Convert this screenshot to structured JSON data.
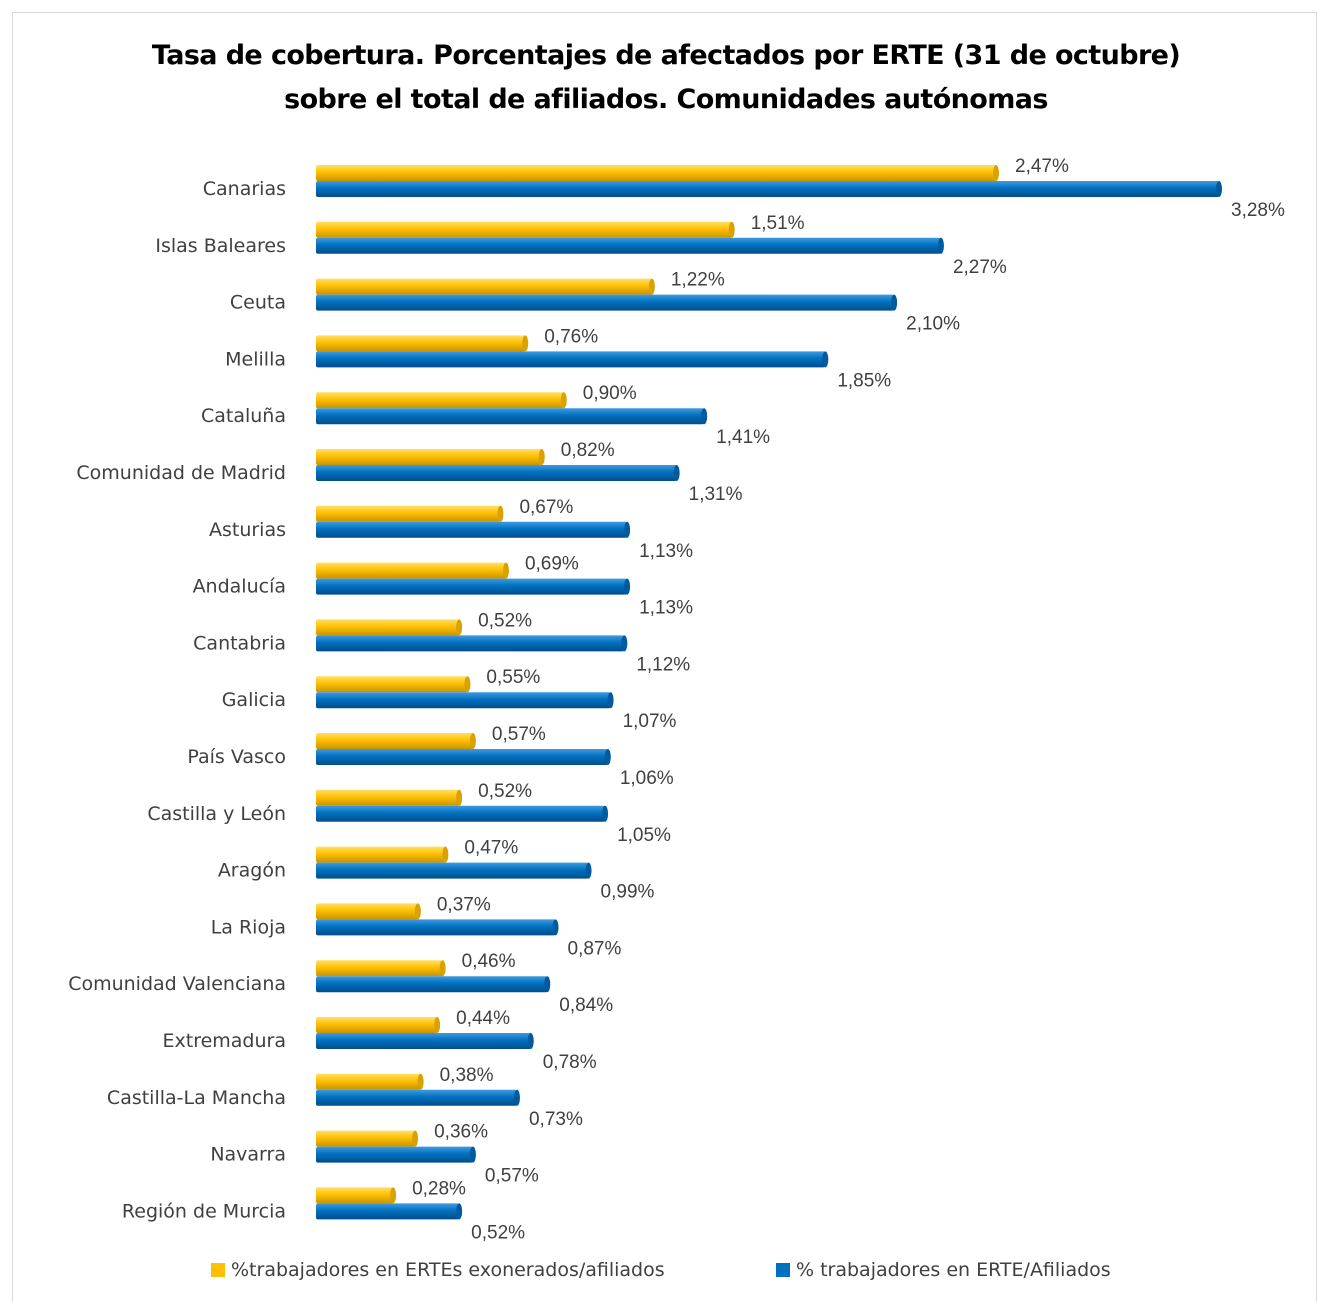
{
  "chart_data": {
    "type": "bar",
    "orientation": "horizontal",
    "title_line1": "Tasa de cobertura. Porcentajes de afectados por ERTE (31 de octubre)",
    "title_line2": "sobre el total de afiliados. Comunidades autónomas",
    "categories": [
      "Canarias",
      "Islas Baleares",
      "Ceuta",
      "Melilla",
      "Cataluña",
      "Comunidad de Madrid",
      "Asturias",
      "Andalucía",
      "Cantabria",
      "Galicia",
      "País Vasco",
      "Castilla y León",
      "Aragón",
      "La Rioja",
      "Comunidad Valenciana",
      "Extremadura",
      "Castilla-La Mancha",
      "Navarra",
      "Región de Murcia"
    ],
    "series": [
      {
        "name": "%trabajadores en ERTEs exonerados/afiliados",
        "color": "#ffc000",
        "values": [
          2.47,
          1.51,
          1.22,
          0.76,
          0.9,
          0.82,
          0.67,
          0.69,
          0.52,
          0.55,
          0.57,
          0.52,
          0.47,
          0.37,
          0.46,
          0.44,
          0.38,
          0.36,
          0.28
        ],
        "labels": [
          "2,47%",
          "1,51%",
          "1,22%",
          "0,76%",
          "0,90%",
          "0,82%",
          "0,67%",
          "0,69%",
          "0,52%",
          "0,55%",
          "0,57%",
          "0,52%",
          "0,47%",
          "0,37%",
          "0,46%",
          "0,44%",
          "0,38%",
          "0,36%",
          "0,28%"
        ]
      },
      {
        "name": "% trabajadores en ERTE/Afiliados",
        "color": "#0070c0",
        "values": [
          3.28,
          2.27,
          2.1,
          1.85,
          1.41,
          1.31,
          1.13,
          1.13,
          1.12,
          1.07,
          1.06,
          1.05,
          0.99,
          0.87,
          0.84,
          0.78,
          0.73,
          0.57,
          0.52
        ],
        "labels": [
          "3,28%",
          "2,27%",
          "2,10%",
          "1,85%",
          "1,41%",
          "1,31%",
          "1,13%",
          "1,13%",
          "1,12%",
          "1,07%",
          "1,06%",
          "1,05%",
          "0,99%",
          "0,87%",
          "0,84%",
          "0,78%",
          "0,73%",
          "0,57%",
          "0,52%"
        ]
      }
    ],
    "xlim": [
      0,
      3.28
    ],
    "grid": false,
    "legend_position": "bottom"
  }
}
